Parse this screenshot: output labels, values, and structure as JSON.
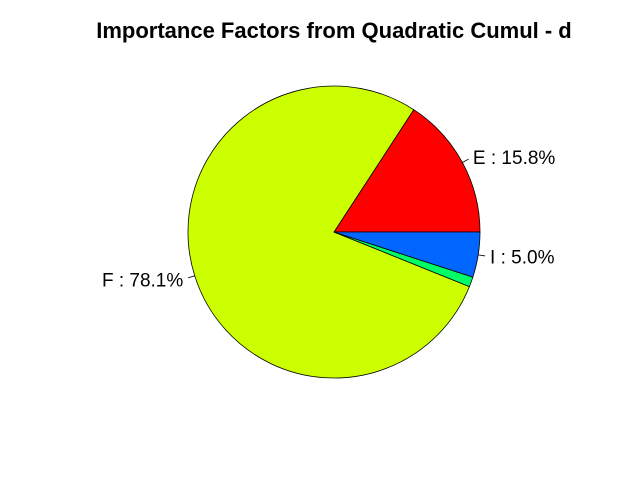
{
  "chart_data": {
    "type": "pie",
    "title": "Importance Factors from Quadratic Cumul - d",
    "slices": [
      {
        "label": "E : 15.8%",
        "value": 15.8,
        "color": "#ff0000"
      },
      {
        "label": "F : 78.1%",
        "value": 78.1,
        "color": "#ccff00"
      },
      {
        "label": "",
        "value": 1.1,
        "color": "#00ff66"
      },
      {
        "label": "I : 5.0%",
        "value": 5.0,
        "color": "#0066ff"
      }
    ],
    "start_angle_deg": 0,
    "direction": "counterclockwise"
  }
}
